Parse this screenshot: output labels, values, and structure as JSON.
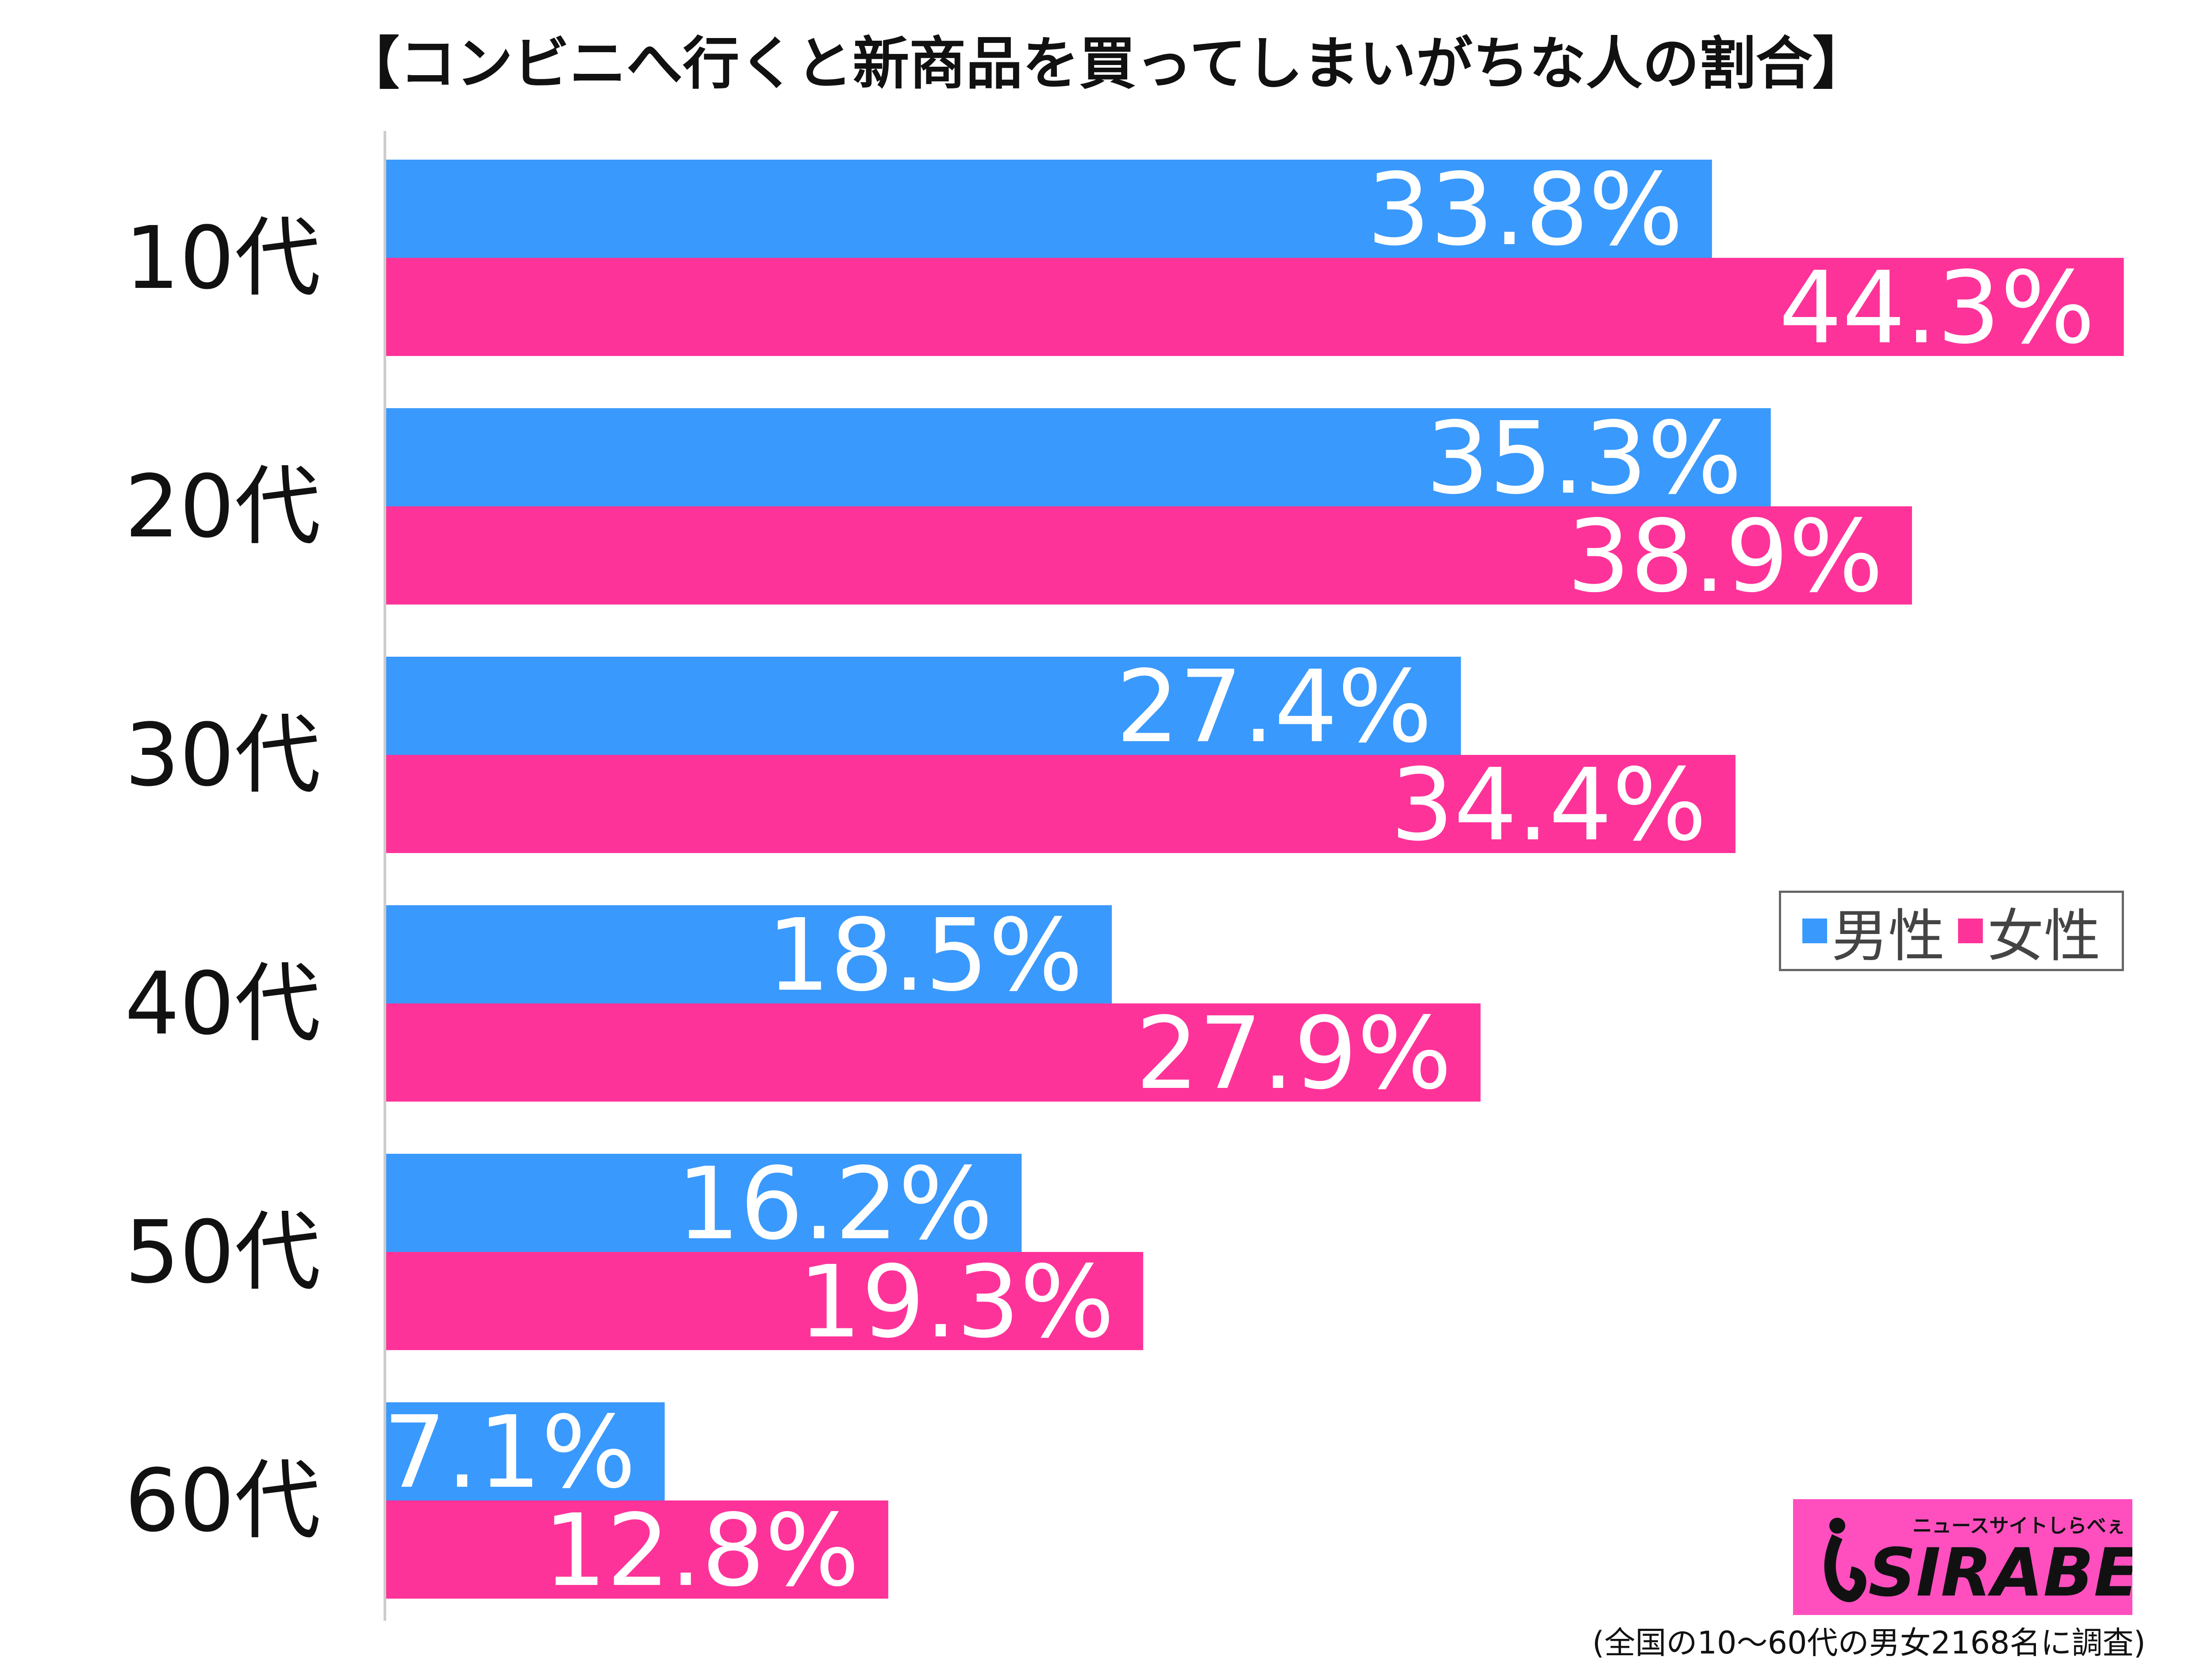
{
  "chart_data": {
    "type": "bar",
    "orientation": "horizontal",
    "title": "【コンビニへ行くと新商品を買ってしまいがちな人の割合】",
    "categories": [
      "10代",
      "20代",
      "30代",
      "40代",
      "50代",
      "60代"
    ],
    "series": [
      {
        "name": "男性",
        "color": "#3a99fc",
        "values": [
          33.8,
          35.3,
          27.4,
          18.5,
          16.2,
          7.1
        ]
      },
      {
        "name": "女性",
        "color": "#fe3399",
        "values": [
          44.3,
          38.9,
          34.4,
          27.9,
          19.3,
          12.8
        ]
      }
    ],
    "value_suffix": "%",
    "xlim": [
      0,
      50
    ],
    "grid": false,
    "legend_placement": "right-middle"
  },
  "logo": {
    "text": "SIRABEE",
    "subtext": "ニュースサイトしらべぇ",
    "color": "#ff4fbf"
  },
  "footer": "(全国の10〜60代の男女2168名に調査)"
}
